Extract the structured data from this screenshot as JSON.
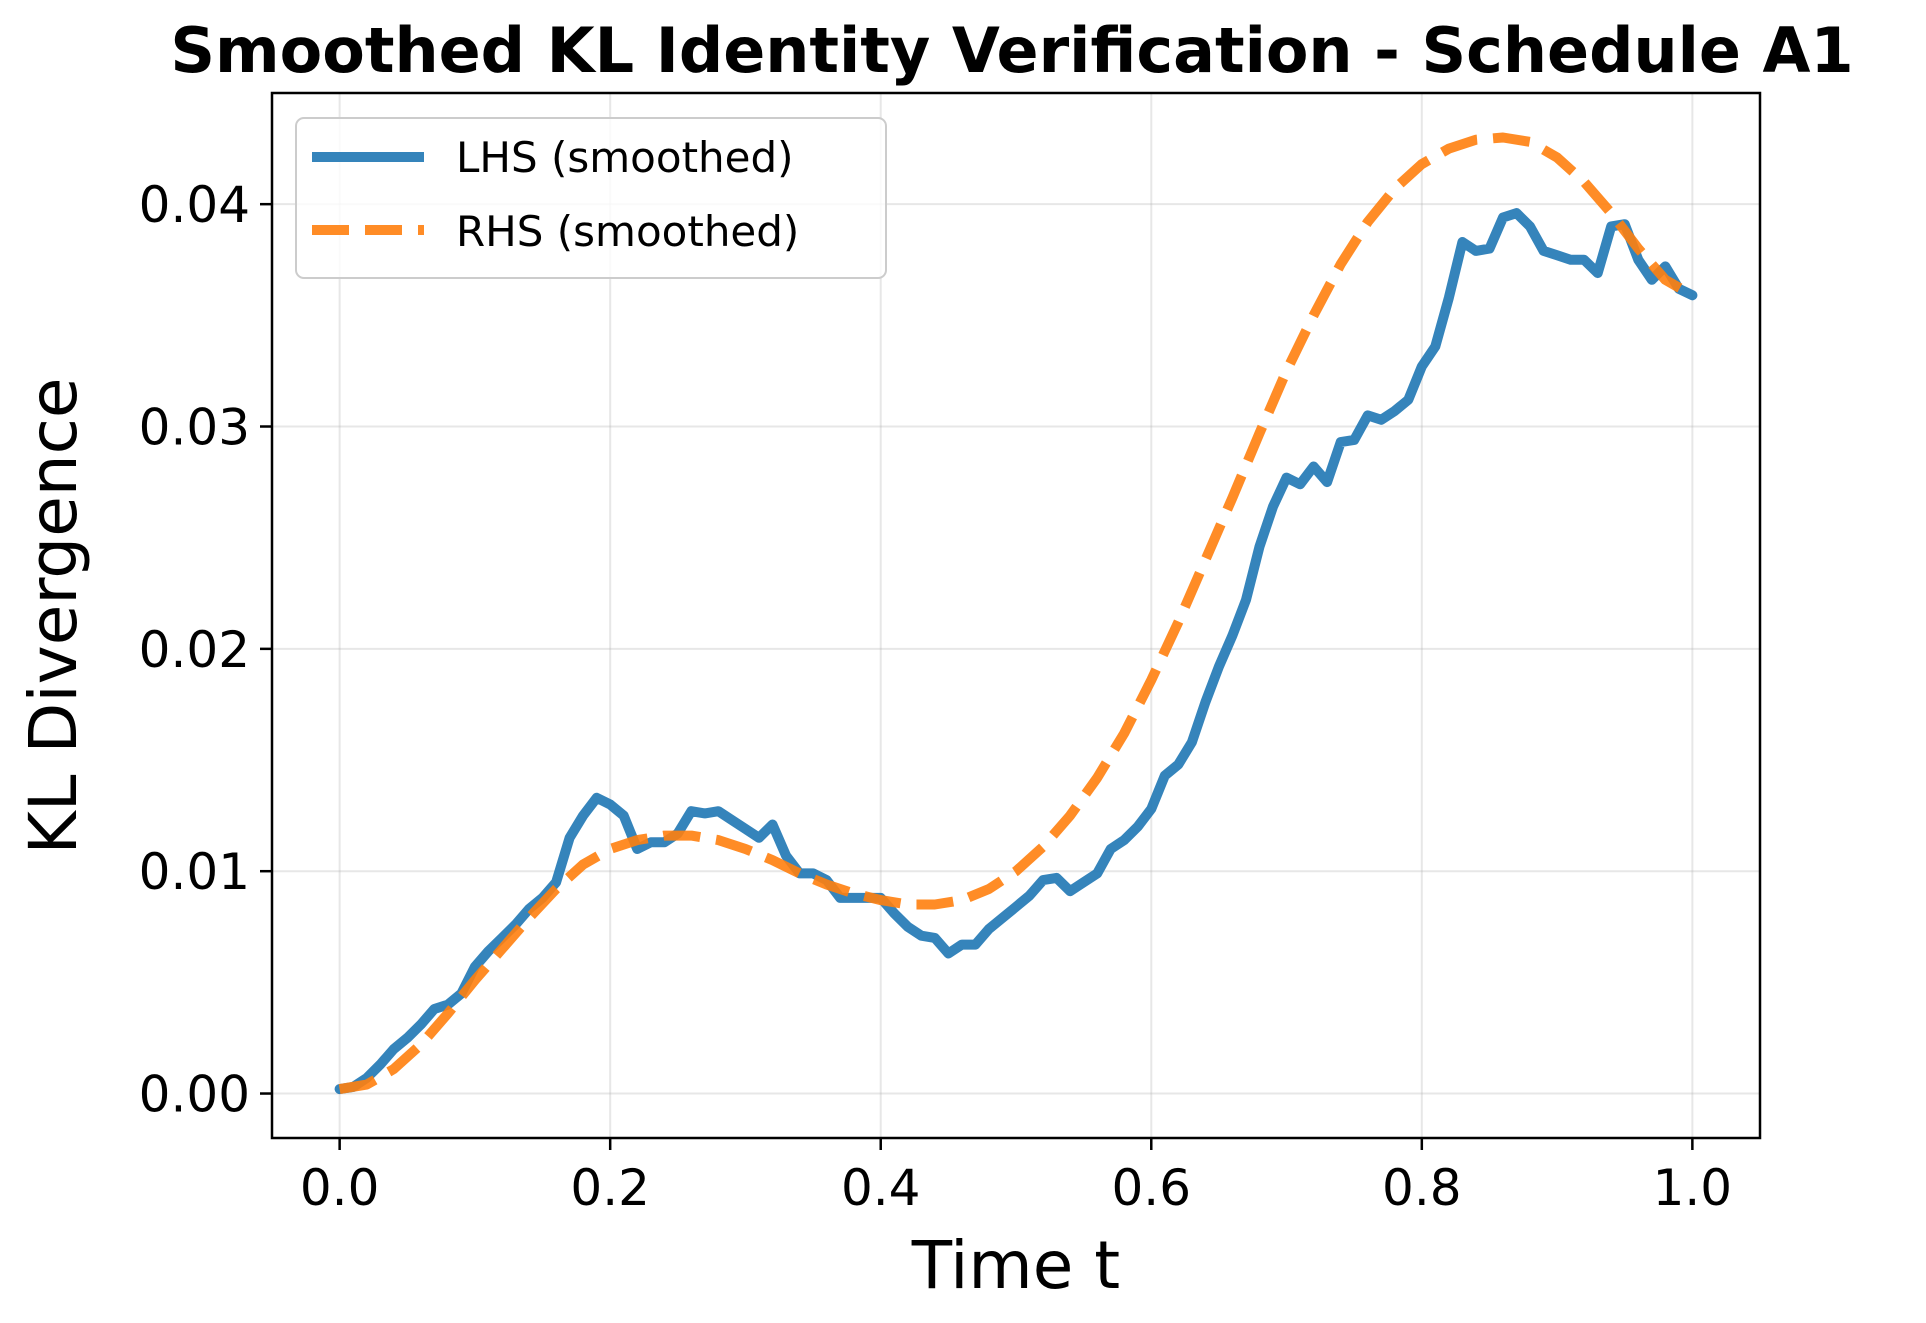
{
  "chart_data": {
    "type": "line",
    "title": "Smoothed KL Identity Verification - Schedule A1",
    "xlabel": "Time t",
    "ylabel": "KL Divergence",
    "xlim": [
      -0.05,
      1.05
    ],
    "ylim": [
      -0.002,
      0.045
    ],
    "xticks": [
      0.0,
      0.2,
      0.4,
      0.6,
      0.8,
      1.0
    ],
    "xtick_labels": [
      "0.0",
      "0.2",
      "0.4",
      "0.6",
      "0.8",
      "1.0"
    ],
    "yticks": [
      0.0,
      0.01,
      0.02,
      0.03,
      0.04
    ],
    "ytick_labels": [
      "0.00",
      "0.01",
      "0.02",
      "0.03",
      "0.04"
    ],
    "grid": true,
    "legend_position": "top-left",
    "series": [
      {
        "name": "LHS (smoothed)",
        "color": "#1f77b4",
        "style": "solid",
        "x": [
          0.0,
          0.01,
          0.02,
          0.03,
          0.04,
          0.05,
          0.06,
          0.07,
          0.08,
          0.09,
          0.1,
          0.11,
          0.12,
          0.13,
          0.14,
          0.15,
          0.16,
          0.17,
          0.18,
          0.19,
          0.2,
          0.21,
          0.22,
          0.23,
          0.24,
          0.25,
          0.26,
          0.27,
          0.28,
          0.29,
          0.3,
          0.31,
          0.32,
          0.33,
          0.34,
          0.35,
          0.36,
          0.37,
          0.38,
          0.39,
          0.4,
          0.41,
          0.42,
          0.43,
          0.44,
          0.45,
          0.46,
          0.47,
          0.48,
          0.49,
          0.5,
          0.51,
          0.52,
          0.53,
          0.54,
          0.55,
          0.56,
          0.57,
          0.58,
          0.59,
          0.6,
          0.61,
          0.62,
          0.63,
          0.64,
          0.65,
          0.66,
          0.67,
          0.68,
          0.69,
          0.7,
          0.71,
          0.72,
          0.73,
          0.74,
          0.75,
          0.76,
          0.77,
          0.78,
          0.79,
          0.8,
          0.81,
          0.82,
          0.83,
          0.84,
          0.85,
          0.86,
          0.87,
          0.88,
          0.89,
          0.9,
          0.91,
          0.92,
          0.93,
          0.94,
          0.95,
          0.96,
          0.97,
          0.98,
          0.99,
          1.0
        ],
        "y": [
          0.0002,
          0.0003,
          0.0007,
          0.0013,
          0.002,
          0.0025,
          0.0031,
          0.0038,
          0.004,
          0.0045,
          0.0057,
          0.0064,
          0.007,
          0.0076,
          0.0083,
          0.0088,
          0.0095,
          0.0115,
          0.0125,
          0.0133,
          0.013,
          0.0125,
          0.011,
          0.0113,
          0.0113,
          0.0117,
          0.0127,
          0.0126,
          0.0127,
          0.0123,
          0.0119,
          0.0115,
          0.0121,
          0.0107,
          0.0099,
          0.0099,
          0.0096,
          0.0088,
          0.0088,
          0.0088,
          0.0088,
          0.0081,
          0.0075,
          0.0071,
          0.007,
          0.0063,
          0.0067,
          0.0067,
          0.0074,
          0.0079,
          0.0084,
          0.0089,
          0.0096,
          0.0097,
          0.0091,
          0.0095,
          0.0099,
          0.011,
          0.0114,
          0.012,
          0.0128,
          0.0143,
          0.0148,
          0.0158,
          0.0176,
          0.0192,
          0.0206,
          0.0222,
          0.0246,
          0.0264,
          0.0277,
          0.0274,
          0.0282,
          0.0275,
          0.0293,
          0.0294,
          0.0305,
          0.0303,
          0.0307,
          0.0312,
          0.0327,
          0.0336,
          0.0358,
          0.0383,
          0.0379,
          0.038,
          0.0394,
          0.0396,
          0.039,
          0.0379,
          0.0377,
          0.0375,
          0.0375,
          0.0369,
          0.039,
          0.0391,
          0.0375,
          0.0366,
          0.0372,
          0.0362,
          0.0359
        ]
      },
      {
        "name": "RHS (smoothed)",
        "color": "#ff7f0e",
        "style": "dashed",
        "x": [
          0.0,
          0.02,
          0.04,
          0.06,
          0.08,
          0.1,
          0.12,
          0.14,
          0.16,
          0.18,
          0.2,
          0.22,
          0.24,
          0.26,
          0.28,
          0.3,
          0.32,
          0.34,
          0.36,
          0.38,
          0.4,
          0.42,
          0.44,
          0.46,
          0.48,
          0.5,
          0.52,
          0.54,
          0.56,
          0.58,
          0.6,
          0.62,
          0.64,
          0.66,
          0.68,
          0.7,
          0.72,
          0.74,
          0.76,
          0.78,
          0.8,
          0.82,
          0.84,
          0.86,
          0.88,
          0.9,
          0.92,
          0.94,
          0.96,
          0.98,
          1.0
        ],
        "y": [
          0.0002,
          0.0004,
          0.0011,
          0.0022,
          0.0036,
          0.0051,
          0.0065,
          0.0079,
          0.0092,
          0.0103,
          0.011,
          0.0114,
          0.0116,
          0.0116,
          0.0114,
          0.011,
          0.0105,
          0.0099,
          0.0094,
          0.009,
          0.0087,
          0.0085,
          0.0085,
          0.0087,
          0.0092,
          0.01,
          0.0111,
          0.0125,
          0.0142,
          0.0162,
          0.0186,
          0.0212,
          0.024,
          0.0268,
          0.0297,
          0.0325,
          0.035,
          0.0373,
          0.0392,
          0.0407,
          0.0418,
          0.0425,
          0.0429,
          0.043,
          0.0428,
          0.0421,
          0.041,
          0.0396,
          0.038,
          0.0366,
          0.0359
        ]
      }
    ]
  }
}
